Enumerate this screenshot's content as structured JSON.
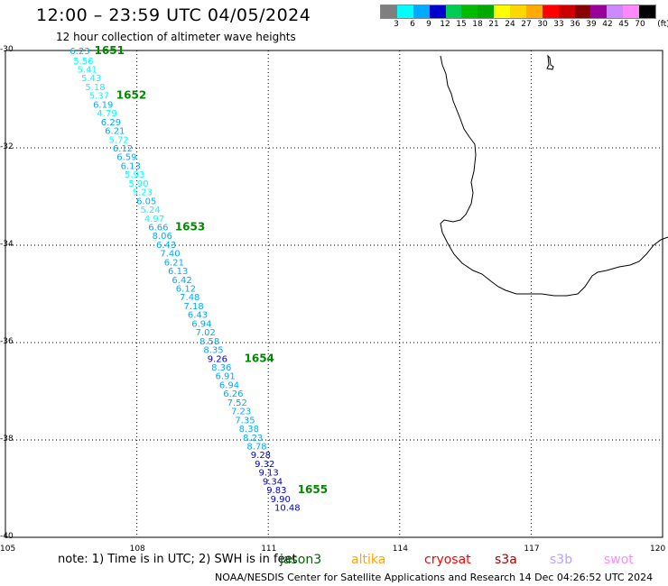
{
  "title": "12:00 – 23:59 UTC 04/05/2024",
  "subtitle": "12 hour collection of altimeter wave heights",
  "colorbar": {
    "colors": [
      "#7f7f7f",
      "#00ffff",
      "#00aaff",
      "#0000cd",
      "#00cc55",
      "#00bb00",
      "#00aa00",
      "#ffff00",
      "#ffd700",
      "#ffaa00",
      "#ff0000",
      "#cc0000",
      "#880000",
      "#990099",
      "#cc88ff",
      "#ff88ff",
      "#000000"
    ],
    "labels": [
      "3",
      "6",
      "9",
      "12",
      "15",
      "18",
      "21",
      "24",
      "27",
      "30",
      "33",
      "36",
      "39",
      "42",
      "45",
      "70",
      "(ft)"
    ]
  },
  "axes": {
    "lon_ticks": [
      "105",
      "108",
      "111",
      "114",
      "117",
      "120"
    ],
    "lat_ticks": [
      "-30",
      "-32",
      "-34",
      "-36",
      "-38",
      "-40"
    ]
  },
  "observations": [
    {
      "lat": -30.0,
      "lon": 106.47,
      "swh": "6.23"
    },
    {
      "lat": -30.2,
      "lon": 106.55,
      "swh": "5.56"
    },
    {
      "lat": -30.38,
      "lon": 106.64,
      "swh": "5.41"
    },
    {
      "lat": -30.56,
      "lon": 106.73,
      "swh": "5.43"
    },
    {
      "lat": -30.74,
      "lon": 106.82,
      "swh": "5.18"
    },
    {
      "lat": -30.92,
      "lon": 106.91,
      "swh": "5.37"
    },
    {
      "lat": -31.1,
      "lon": 107.0,
      "swh": "6.19"
    },
    {
      "lat": -31.28,
      "lon": 107.09,
      "swh": "4.79"
    },
    {
      "lat": -31.46,
      "lon": 107.18,
      "swh": "6.29"
    },
    {
      "lat": -31.64,
      "lon": 107.27,
      "swh": "6.21"
    },
    {
      "lat": -31.82,
      "lon": 107.36,
      "swh": "5.72"
    },
    {
      "lat": -32.0,
      "lon": 107.45,
      "swh": "6.12"
    },
    {
      "lat": -32.18,
      "lon": 107.54,
      "swh": "6.59"
    },
    {
      "lat": -32.36,
      "lon": 107.63,
      "swh": "6.13"
    },
    {
      "lat": -32.54,
      "lon": 107.72,
      "swh": "5.93"
    },
    {
      "lat": -32.72,
      "lon": 107.81,
      "swh": "5.90"
    },
    {
      "lat": -32.9,
      "lon": 107.9,
      "swh": "5.23"
    },
    {
      "lat": -33.08,
      "lon": 107.99,
      "swh": "6.05"
    },
    {
      "lat": -33.26,
      "lon": 108.08,
      "swh": "5.24"
    },
    {
      "lat": -33.44,
      "lon": 108.17,
      "swh": "4.97"
    },
    {
      "lat": -33.62,
      "lon": 108.26,
      "swh": "6.66"
    },
    {
      "lat": -33.8,
      "lon": 108.35,
      "swh": "8.06"
    },
    {
      "lat": -33.98,
      "lon": 108.44,
      "swh": "6.43"
    },
    {
      "lat": -34.16,
      "lon": 108.53,
      "swh": "7.40"
    },
    {
      "lat": -34.34,
      "lon": 108.62,
      "swh": "6.21"
    },
    {
      "lat": -34.52,
      "lon": 108.71,
      "swh": "6.13"
    },
    {
      "lat": -34.7,
      "lon": 108.8,
      "swh": "6.42"
    },
    {
      "lat": -34.88,
      "lon": 108.89,
      "swh": "6.12"
    },
    {
      "lat": -35.06,
      "lon": 108.98,
      "swh": "7.48"
    },
    {
      "lat": -35.24,
      "lon": 109.07,
      "swh": "7.18"
    },
    {
      "lat": -35.42,
      "lon": 109.16,
      "swh": "6.43"
    },
    {
      "lat": -35.6,
      "lon": 109.25,
      "swh": "6.94"
    },
    {
      "lat": -35.78,
      "lon": 109.34,
      "swh": "7.02"
    },
    {
      "lat": -35.96,
      "lon": 109.43,
      "swh": "8.58"
    },
    {
      "lat": -36.14,
      "lon": 109.52,
      "swh": "8.35"
    },
    {
      "lat": -36.32,
      "lon": 109.61,
      "swh": "9.26"
    },
    {
      "lat": -36.5,
      "lon": 109.7,
      "swh": "8.36"
    },
    {
      "lat": -36.68,
      "lon": 109.79,
      "swh": "6.91"
    },
    {
      "lat": -36.86,
      "lon": 109.88,
      "swh": "6.94"
    },
    {
      "lat": -37.04,
      "lon": 109.97,
      "swh": "6.26"
    },
    {
      "lat": -37.22,
      "lon": 110.06,
      "swh": "7.52"
    },
    {
      "lat": -37.4,
      "lon": 110.15,
      "swh": "7.23"
    },
    {
      "lat": -37.58,
      "lon": 110.24,
      "swh": "7.35"
    },
    {
      "lat": -37.76,
      "lon": 110.33,
      "swh": "8.38"
    },
    {
      "lat": -37.94,
      "lon": 110.42,
      "swh": "8.23"
    },
    {
      "lat": -38.12,
      "lon": 110.51,
      "swh": "8.78"
    },
    {
      "lat": -38.3,
      "lon": 110.6,
      "swh": "9.28"
    },
    {
      "lat": -38.48,
      "lon": 110.69,
      "swh": "9.32"
    },
    {
      "lat": -38.66,
      "lon": 110.78,
      "swh": "9.13"
    },
    {
      "lat": -38.84,
      "lon": 110.87,
      "swh": "9.34"
    },
    {
      "lat": -39.02,
      "lon": 110.96,
      "swh": "9.83"
    },
    {
      "lat": -39.2,
      "lon": 111.05,
      "swh": "9.90"
    },
    {
      "lat": -39.38,
      "lon": 111.14,
      "swh": "10.48"
    }
  ],
  "time_labels": [
    {
      "lat": -30.0,
      "lon": 107.03,
      "text": "1651"
    },
    {
      "lat": -30.92,
      "lon": 107.53,
      "text": "1652"
    },
    {
      "lat": -33.62,
      "lon": 108.87,
      "text": "1653"
    },
    {
      "lat": -36.32,
      "lon": 110.45,
      "text": "1654"
    },
    {
      "lat": -39.02,
      "lon": 111.67,
      "text": "1655"
    }
  ],
  "time_label_color": "#008800",
  "note": "note:  1) Time is in UTC; 2) SWH is in feet",
  "satellites": [
    {
      "name": "jason3",
      "color": "#006400"
    },
    {
      "name": "altika",
      "color": "#ffa500"
    },
    {
      "name": "cryosat",
      "color": "#ff0000"
    },
    {
      "name": "s3a",
      "color": "#aa0000"
    },
    {
      "name": "s3b",
      "color": "#b9a0ff"
    },
    {
      "name": "swot",
      "color": "#ff88ff"
    }
  ],
  "footer": "NOAA/NESDIS Center for Satellite Applications and Research    14 Dec 04:26:52 UTC 2024"
}
